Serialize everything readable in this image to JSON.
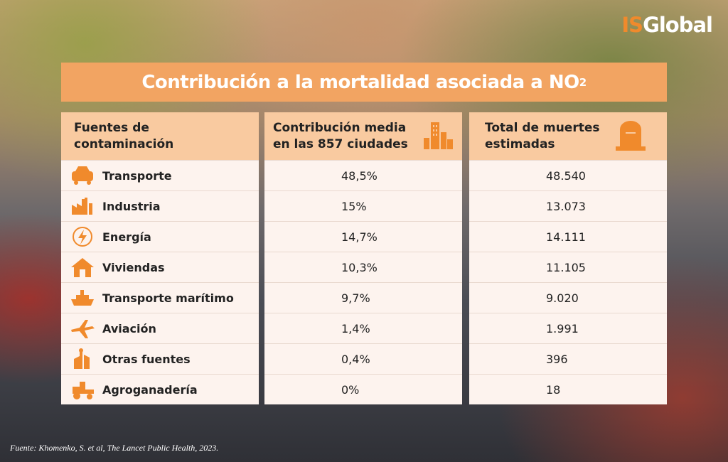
{
  "logo": {
    "part1": "IS",
    "part2": "Global"
  },
  "title": {
    "text": "Contribución a la mortalidad asociada a NO",
    "subscript": "2"
  },
  "table": {
    "headers": [
      "Fuentes de contaminación",
      "Contribución media en las 857 ciudades",
      "Total de muertes estimadas"
    ],
    "rows": [
      [
        "Transporte",
        "48,5%",
        "48.540"
      ],
      [
        "Industria",
        "15%",
        "13.073"
      ],
      [
        "Energía",
        "14,7%",
        "14.111"
      ],
      [
        "Viviendas",
        "10,3%",
        "11.105"
      ],
      [
        "Transporte marítimo",
        "9,7%",
        "9.020"
      ],
      [
        "Aviación",
        "1,4%",
        "1.991"
      ],
      [
        "Otras fuentes",
        "0,4%",
        "396"
      ],
      [
        "Agroganadería",
        "0%",
        "18"
      ]
    ]
  },
  "footnote": "Fuente: Khomenko, S. et al, The Lancet Public Health, 2023."
}
